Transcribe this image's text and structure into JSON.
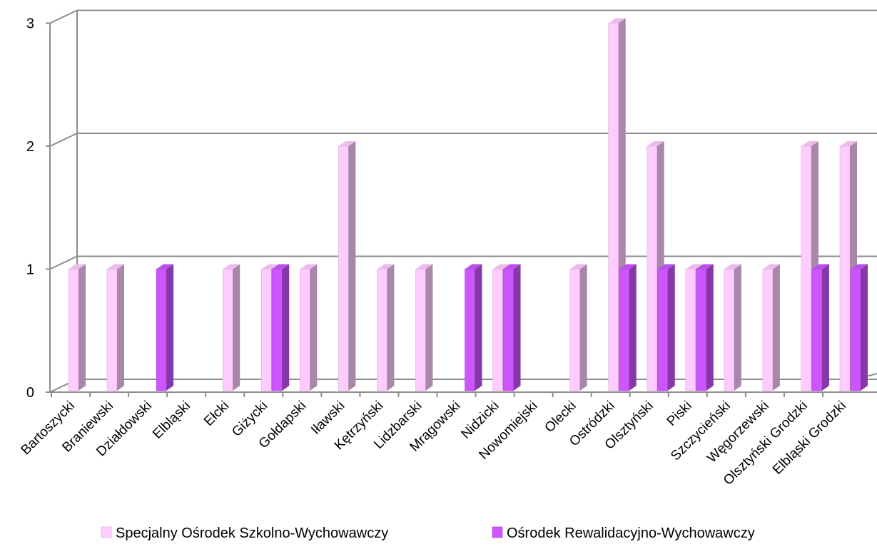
{
  "chart_data": {
    "type": "bar",
    "subtype": "3d-clustered-column",
    "categories": [
      "Bartoszycki",
      "Braniewski",
      "Działdowski",
      "Elbląski",
      "Ełcki",
      "Giżycki",
      "Gołdapski",
      "Iławski",
      "Kętrzyński",
      "Lidzbarski",
      "Mrągowski",
      "Nidzicki",
      "Nowomiejski",
      "Olecki",
      "Ostródzki",
      "Olsztyński",
      "Piski",
      "Szczycieński",
      "Węgorzewski",
      "Olsztyński Grodzki",
      "Elbląski Grodzki"
    ],
    "series": [
      {
        "name": "Specjalny Ośrodek Szkolno-Wychowawczy",
        "color": "#ffccff",
        "values": [
          1,
          1,
          0,
          0,
          1,
          1,
          1,
          2,
          1,
          1,
          0,
          1,
          0,
          1,
          3,
          2,
          1,
          1,
          1,
          2,
          2
        ]
      },
      {
        "name": "Ośrodek Rewalidacyjno-Wychowawczy",
        "color": "#cc55ff",
        "values": [
          0,
          0,
          1,
          0,
          0,
          1,
          0,
          0,
          0,
          0,
          1,
          1,
          0,
          0,
          1,
          1,
          1,
          0,
          0,
          1,
          1
        ]
      }
    ],
    "yticks": [
      "0",
      "1",
      "2",
      "3"
    ],
    "ylim": [
      0,
      3
    ],
    "grid": true,
    "legend": "bottom",
    "title": "",
    "xlabel": "",
    "ylabel": ""
  }
}
